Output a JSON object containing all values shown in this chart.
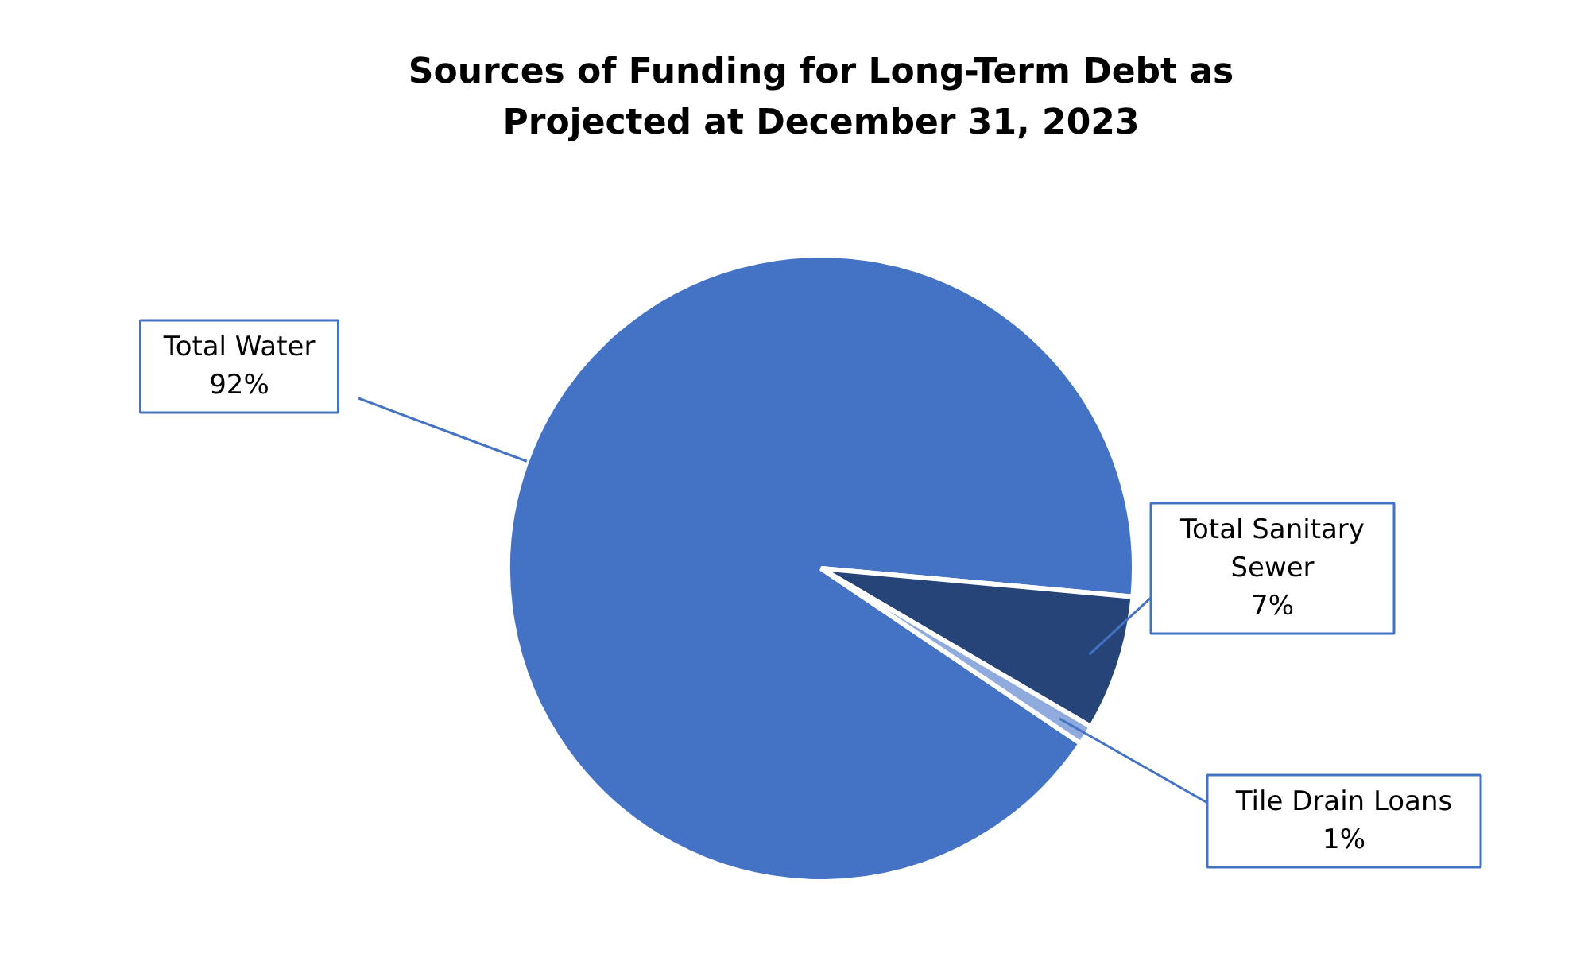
{
  "chart_data": {
    "type": "pie",
    "title": "Sources of Funding for Long-Term Debt as Projected at December 31, 2023",
    "categories": [
      "Total Water",
      "Total Sanitary Sewer",
      "Tile Drain Loans"
    ],
    "values": [
      92,
      7,
      1
    ],
    "colors": [
      "#4472c4",
      "#264478",
      "#8faadc"
    ],
    "value_labels": [
      "92%",
      "7%",
      "1%"
    ]
  }
}
